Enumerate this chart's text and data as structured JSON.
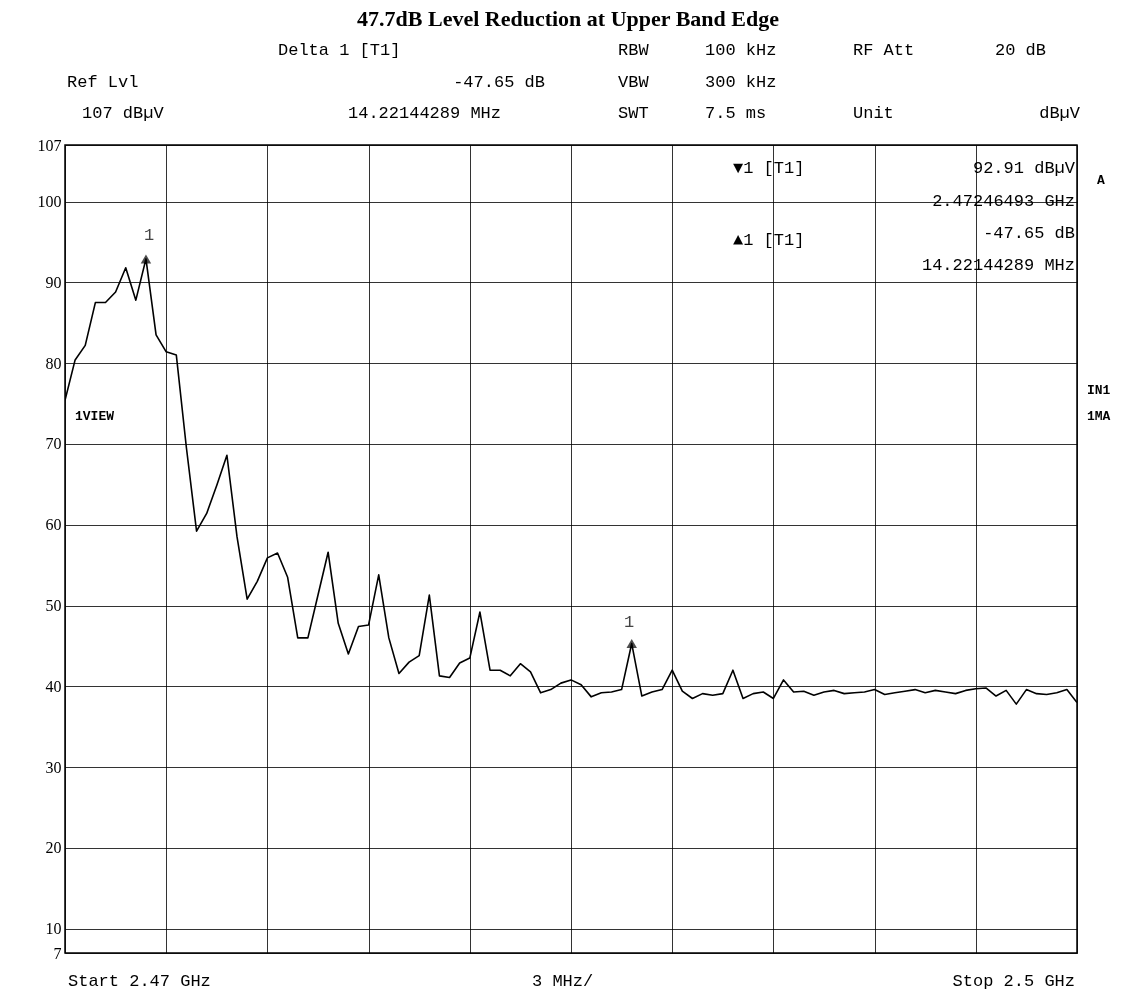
{
  "chart_data": {
    "type": "line",
    "title": "47.7dB Level Reduction at Upper Band Edge",
    "annotations": [
      "Delta 1 [T1]",
      "Ref Lvl",
      "-47.65 dB",
      "107 dBµV",
      "14.22144289 MHz",
      "RBW",
      "100 kHz",
      "RF Att",
      "20 dB",
      "VBW",
      "300 kHz",
      "SWT",
      "7.5 ms",
      "Unit",
      "dBµV",
      "▼1 [T1]",
      "92.91 dBµV",
      "2.47246493 GHz",
      "▲1 [T1]",
      "-47.65 dB",
      "14.22144289 MHz",
      "1VIEW",
      "A",
      "IN1",
      "1MA",
      "Start 2.47 GHz",
      "3 MHz/",
      "Stop 2.5 GHz",
      "1",
      "1"
    ],
    "categories": [
      null,
      null,
      null,
      null,
      null,
      null,
      null,
      null,
      null,
      null,
      null,
      null,
      null,
      null,
      null,
      null,
      null,
      null,
      null,
      null,
      null,
      null,
      null,
      null,
      null,
      null,
      null,
      null,
      null,
      null,
      null,
      null,
      null,
      null,
      null,
      null,
      null,
      null,
      null,
      null,
      null,
      null,
      null,
      null,
      null,
      null,
      null,
      null,
      null,
      null,
      null,
      null,
      null,
      null,
      null,
      null,
      null,
      null,
      null,
      null,
      null,
      null,
      null,
      null,
      null,
      null,
      null,
      null,
      null,
      null,
      null,
      null,
      null,
      null,
      null,
      null,
      null,
      null,
      null,
      null,
      null,
      null,
      null,
      null,
      null,
      null,
      null,
      null,
      null,
      null,
      null,
      null,
      null,
      null,
      null,
      null,
      null,
      null,
      null,
      null,
      null
    ],
    "ylim": [
      7,
      107
    ],
    "yticks": [
      7,
      10,
      20,
      30,
      40,
      50,
      60,
      70,
      80,
      90,
      100,
      107
    ],
    "tick_labels": "y",
    "grid": true,
    "series": [
      {
        "color": "#000000",
        "values": [
          75.4,
          80.4,
          82.2,
          87.5,
          87.5,
          88.8,
          91.8,
          87.8,
          92.9,
          83.5,
          81.4,
          81.0,
          69.5,
          59.2,
          61.4,
          64.9,
          68.6,
          58.5,
          50.8,
          53.0,
          55.9,
          56.5,
          53.5,
          46.0,
          46.0,
          51.3,
          56.6,
          47.8,
          44.0,
          47.4,
          47.6,
          53.8,
          46.0,
          41.6,
          43.0,
          43.8,
          51.3,
          41.3,
          41.1,
          42.9,
          43.5,
          49.2,
          42.0,
          42.0,
          41.3,
          42.8,
          41.8,
          39.2,
          39.6,
          40.4,
          40.8,
          40.2,
          38.7,
          39.2,
          39.3,
          39.6,
          45.3,
          38.8,
          39.3,
          39.6,
          42.0,
          39.4,
          38.5,
          39.1,
          38.9,
          39.1,
          42.0,
          38.5,
          39.1,
          39.3,
          38.5,
          40.8,
          39.3,
          39.4,
          38.9,
          39.3,
          39.5,
          39.1,
          39.2,
          39.3,
          39.6,
          39.0,
          39.2,
          39.4,
          39.6,
          39.2,
          39.5,
          39.3,
          39.1,
          39.5,
          39.7,
          39.8,
          38.8,
          39.5,
          37.8,
          39.6,
          39.1,
          39.0,
          39.2,
          39.6,
          38.0
        ]
      },
      {
        "type": "scatter",
        "color": "#000000",
        "marker": "triangle",
        "values": [
          null,
          null,
          null,
          null,
          null,
          null,
          null,
          null,
          92.9,
          null,
          null,
          null,
          null,
          null,
          null,
          null,
          null,
          null,
          null,
          null,
          null,
          null,
          null,
          null,
          null,
          null,
          null,
          null,
          null,
          null,
          null,
          null,
          null,
          null,
          null,
          null,
          null,
          null,
          null,
          null,
          null,
          null,
          null,
          null,
          null,
          null,
          null,
          null,
          null,
          null,
          null,
          null,
          null,
          null,
          null,
          null,
          45.3,
          null,
          null,
          null,
          null,
          null,
          null,
          null,
          null,
          null,
          null,
          null,
          null,
          null,
          null,
          null,
          null,
          null,
          null,
          null,
          null,
          null,
          null,
          null,
          null,
          null,
          null,
          null,
          null,
          null,
          null,
          null,
          null,
          null,
          null,
          null,
          null,
          null,
          null,
          null,
          null,
          null,
          null,
          null,
          null
        ]
      }
    ]
  }
}
